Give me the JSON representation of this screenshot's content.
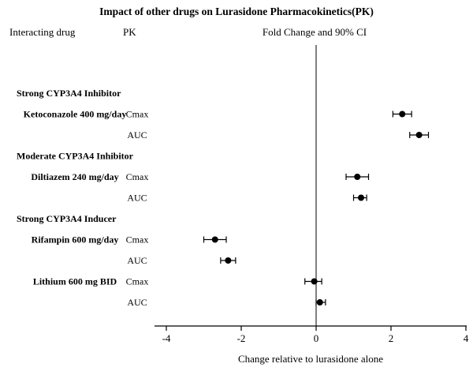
{
  "title": "Impact of other drugs on Lurasidone Pharmacokinetics(PK)",
  "columns": {
    "interacting_drug": "Interacting drug",
    "pk": "PK",
    "fold_change": "Fold Change and 90% CI"
  },
  "chart_data": {
    "type": "scatter",
    "subtype": "forest-plot",
    "title": "Impact of other drugs on Lurasidone Pharmacokinetics(PK)",
    "xlabel": "Change relative to lurasidone alone",
    "ci_level": "90%",
    "xlim": [
      -4.3,
      4.05
    ],
    "x_ticks": [
      -4,
      -2,
      0,
      2,
      4
    ],
    "reference_line_x": 0,
    "marker": "filled-circle",
    "grid": false,
    "rows": [
      {
        "type": "group",
        "label": "Strong CYP3A4 Inhibitor"
      },
      {
        "type": "data",
        "drug": "Ketoconazole 400 mg/day",
        "pk": "Cmax",
        "value": 2.3,
        "ci": [
          2.05,
          2.55
        ]
      },
      {
        "type": "data",
        "pk": "AUC",
        "value": 2.75,
        "ci": [
          2.5,
          3.0
        ]
      },
      {
        "type": "group",
        "label": "Moderate CYP3A4 Inhibitor"
      },
      {
        "type": "data",
        "drug": "Diltiazem 240 mg/day",
        "pk": "Cmax",
        "value": 1.1,
        "ci": [
          0.8,
          1.4
        ]
      },
      {
        "type": "data",
        "pk": "AUC",
        "value": 1.2,
        "ci": [
          1.0,
          1.35
        ]
      },
      {
        "type": "group",
        "label": "Strong CYP3A4 Inducer"
      },
      {
        "type": "data",
        "drug": "Rifampin 600 mg/day",
        "pk": "Cmax",
        "value": -2.7,
        "ci": [
          -3.0,
          -2.4
        ]
      },
      {
        "type": "data",
        "pk": "AUC",
        "value": -2.35,
        "ci": [
          -2.55,
          -2.15
        ]
      },
      {
        "type": "data",
        "drug": "Lithium 600 mg BID",
        "pk": "Cmax",
        "value": -0.05,
        "ci": [
          -0.3,
          0.15
        ]
      },
      {
        "type": "data",
        "pk": "AUC",
        "value": 0.1,
        "ci": [
          0.0,
          0.25
        ]
      }
    ]
  }
}
